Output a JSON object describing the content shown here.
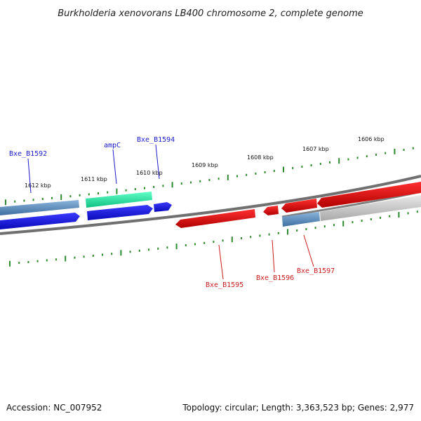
{
  "title": "Burkholderia xenovorans LB400 chromosome 2, complete genome",
  "footer": {
    "accession": "Accession: NC_007952",
    "topology": "Topology: circular; Length: 3,363,523 bp; Genes: 2,977"
  },
  "colors": {
    "forward_gene": "#1414e0",
    "reverse_gene": "#e01414",
    "selected_gene": "#22e6a0",
    "rna_track": "#5a88b8",
    "backbone": "#6e6e6e",
    "tick": "#2d8a2d",
    "forward_label": "#1a1ac8",
    "reverse_label": "#c81a1a"
  },
  "ticks": [
    {
      "label": "1612 kbp"
    },
    {
      "label": "1611 kbp"
    },
    {
      "label": "1610 kbp"
    },
    {
      "label": "1609 kbp"
    },
    {
      "label": "1608 kbp"
    },
    {
      "label": "1607 kbp"
    },
    {
      "label": "1606 kbp"
    }
  ],
  "genes": [
    {
      "label": "Bxe_B1592",
      "strand": "forward"
    },
    {
      "label": "ampC",
      "strand": "forward"
    },
    {
      "label": "Bxe_B1594",
      "strand": "forward"
    },
    {
      "label": "Bxe_B1595",
      "strand": "reverse"
    },
    {
      "label": "Bxe_B1596",
      "strand": "reverse"
    },
    {
      "label": "Bxe_B1597",
      "strand": "reverse"
    }
  ]
}
